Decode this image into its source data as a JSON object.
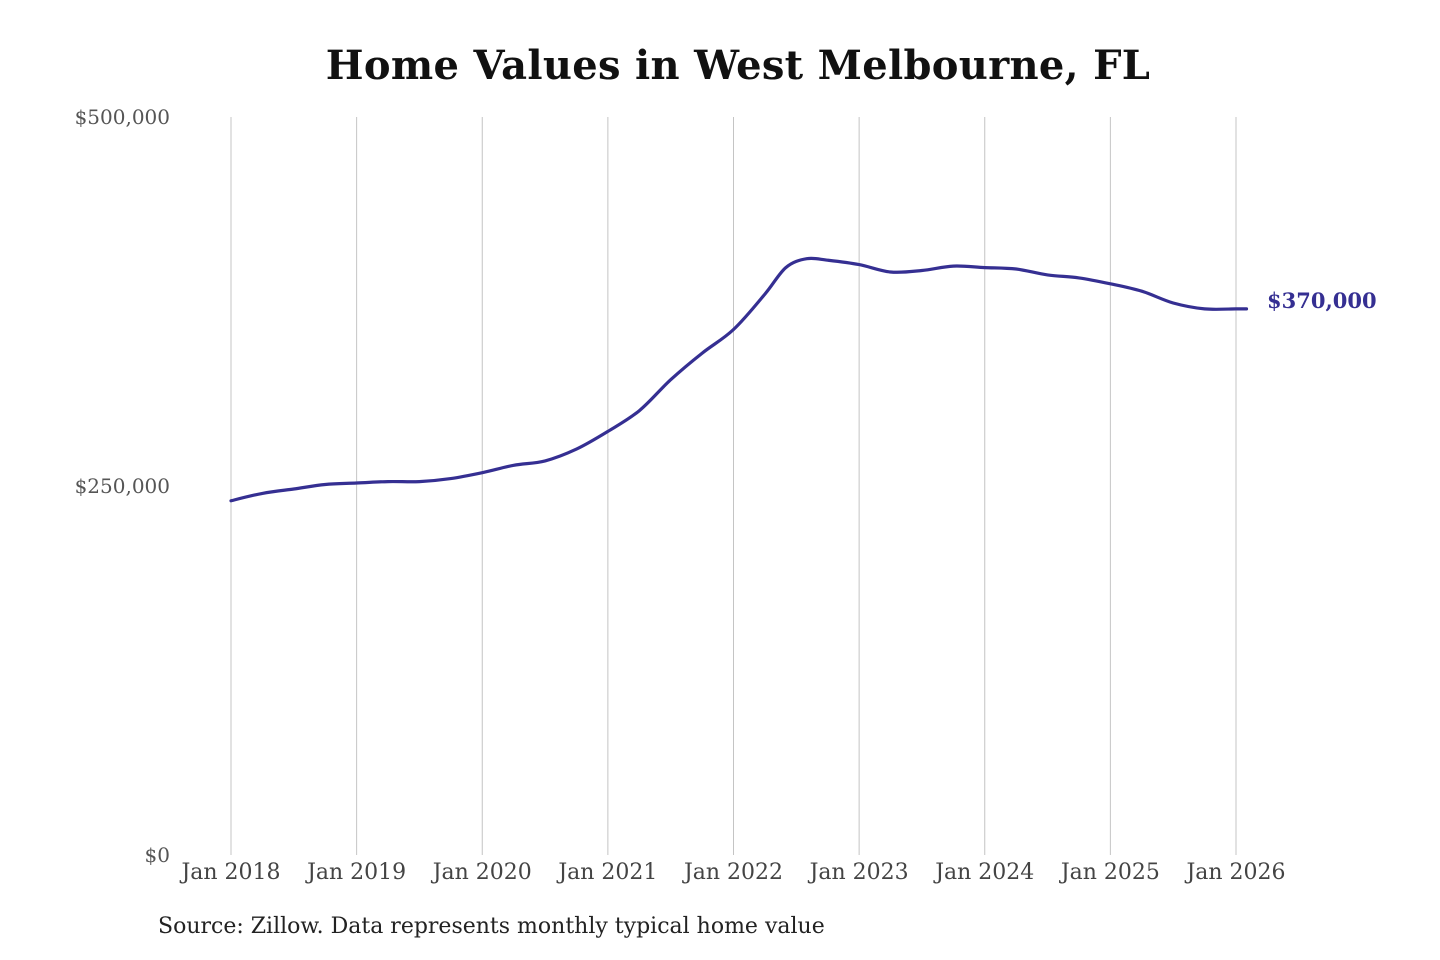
{
  "chart_data": {
    "type": "line",
    "title": "Home Values in West Melbourne, FL",
    "source": "Source: Zillow. Data represents monthly typical home value",
    "ylim": [
      0,
      500000
    ],
    "xlim": [
      "2018-01",
      "2026-01"
    ],
    "y_ticks": [
      {
        "value": 0,
        "label": "$0"
      },
      {
        "value": 250000,
        "label": "$250,000"
      },
      {
        "value": 500000,
        "label": "$500,000"
      }
    ],
    "x_ticks": [
      {
        "value": "2018-01",
        "label": "Jan 2018"
      },
      {
        "value": "2019-01",
        "label": "Jan 2019"
      },
      {
        "value": "2020-01",
        "label": "Jan 2020"
      },
      {
        "value": "2021-01",
        "label": "Jan 2021"
      },
      {
        "value": "2022-01",
        "label": "Jan 2022"
      },
      {
        "value": "2023-01",
        "label": "Jan 2023"
      },
      {
        "value": "2024-01",
        "label": "Jan 2024"
      },
      {
        "value": "2025-01",
        "label": "Jan 2025"
      },
      {
        "value": "2026-01",
        "label": "Jan 2026"
      }
    ],
    "grid": "vertical",
    "series": [
      {
        "color": "#352f92",
        "end_label": "$370,000",
        "points": [
          {
            "x": "2018-01",
            "y": 240000
          },
          {
            "x": "2018-04",
            "y": 245000
          },
          {
            "x": "2018-07",
            "y": 248000
          },
          {
            "x": "2018-10",
            "y": 251000
          },
          {
            "x": "2019-01",
            "y": 252000
          },
          {
            "x": "2019-04",
            "y": 253000
          },
          {
            "x": "2019-07",
            "y": 253000
          },
          {
            "x": "2019-10",
            "y": 255000
          },
          {
            "x": "2020-01",
            "y": 259000
          },
          {
            "x": "2020-04",
            "y": 264000
          },
          {
            "x": "2020-07",
            "y": 267000
          },
          {
            "x": "2020-10",
            "y": 275000
          },
          {
            "x": "2021-01",
            "y": 287000
          },
          {
            "x": "2021-04",
            "y": 301000
          },
          {
            "x": "2021-07",
            "y": 322000
          },
          {
            "x": "2021-10",
            "y": 340000
          },
          {
            "x": "2022-01",
            "y": 356000
          },
          {
            "x": "2022-04",
            "y": 380000
          },
          {
            "x": "2022-06",
            "y": 398000
          },
          {
            "x": "2022-08",
            "y": 404000
          },
          {
            "x": "2022-10",
            "y": 403000
          },
          {
            "x": "2023-01",
            "y": 400000
          },
          {
            "x": "2023-04",
            "y": 395000
          },
          {
            "x": "2023-07",
            "y": 396000
          },
          {
            "x": "2023-10",
            "y": 399000
          },
          {
            "x": "2024-01",
            "y": 398000
          },
          {
            "x": "2024-04",
            "y": 397000
          },
          {
            "x": "2024-07",
            "y": 393000
          },
          {
            "x": "2024-10",
            "y": 391000
          },
          {
            "x": "2025-01",
            "y": 387000
          },
          {
            "x": "2025-04",
            "y": 382000
          },
          {
            "x": "2025-07",
            "y": 374000
          },
          {
            "x": "2025-10",
            "y": 370000
          },
          {
            "x": "2026-01",
            "y": 370000
          },
          {
            "x": "2026-02",
            "y": 370000
          }
        ]
      }
    ]
  }
}
